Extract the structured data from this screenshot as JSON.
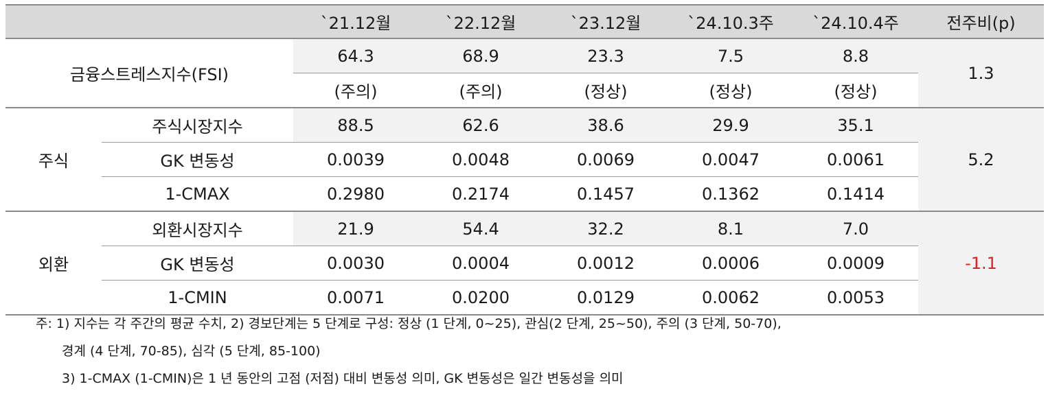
{
  "table": {
    "headers": [
      "",
      "",
      "`21.12월",
      "`22.12월",
      "`23.12월",
      "`24.10.3주",
      "`24.10.4주",
      "전주비(p)"
    ],
    "fsi": {
      "label": "금융스트레스지수(FSI)",
      "values": [
        "64.3",
        "68.9",
        "23.3",
        "7.5",
        "8.8"
      ],
      "states": [
        "(주의)",
        "(주의)",
        "(정상)",
        "(정상)",
        "(정상)"
      ],
      "change": "1.3"
    },
    "stock": {
      "group": "주식",
      "change": "5.2",
      "rows": [
        {
          "label": "주식시장지수",
          "values": [
            "88.5",
            "62.6",
            "38.6",
            "29.9",
            "35.1"
          ]
        },
        {
          "label": "GK 변동성",
          "values": [
            "0.0039",
            "0.0048",
            "0.0069",
            "0.0047",
            "0.0061"
          ]
        },
        {
          "label": "1-CMAX",
          "values": [
            "0.2980",
            "0.2174",
            "0.1457",
            "0.1362",
            "0.1414"
          ]
        }
      ]
    },
    "fx": {
      "group": "외환",
      "change": "-1.1",
      "change_color": "#e02020",
      "rows": [
        {
          "label": "외환시장지수",
          "values": [
            "21.9",
            "54.4",
            "32.2",
            "8.1",
            "7.0"
          ]
        },
        {
          "label": "GK 변동성",
          "values": [
            "0.0030",
            "0.0004",
            "0.0012",
            "0.0006",
            "0.0009"
          ]
        },
        {
          "label": "1-CMIN",
          "values": [
            "0.0071",
            "0.0200",
            "0.0129",
            "0.0062",
            "0.0053"
          ]
        }
      ]
    }
  },
  "notes": {
    "line1": "주: 1) 지수는 각 주간의 평균 수치, 2) 경보단계는 5 단계로 구성: 정상 (1 단계, 0~25), 관심(2 단계, 25~50), 주의 (3 단계, 50-70),",
    "line2": "경계 (4 단계, 70-85), 심각 (5 단계, 85-100)",
    "line3": "3) 1-CMAX (1-CMIN)은 1 년 동안의 고점 (저점) 대비 변동성 의미, GK 변동성은 일간 변동성을 의미"
  }
}
